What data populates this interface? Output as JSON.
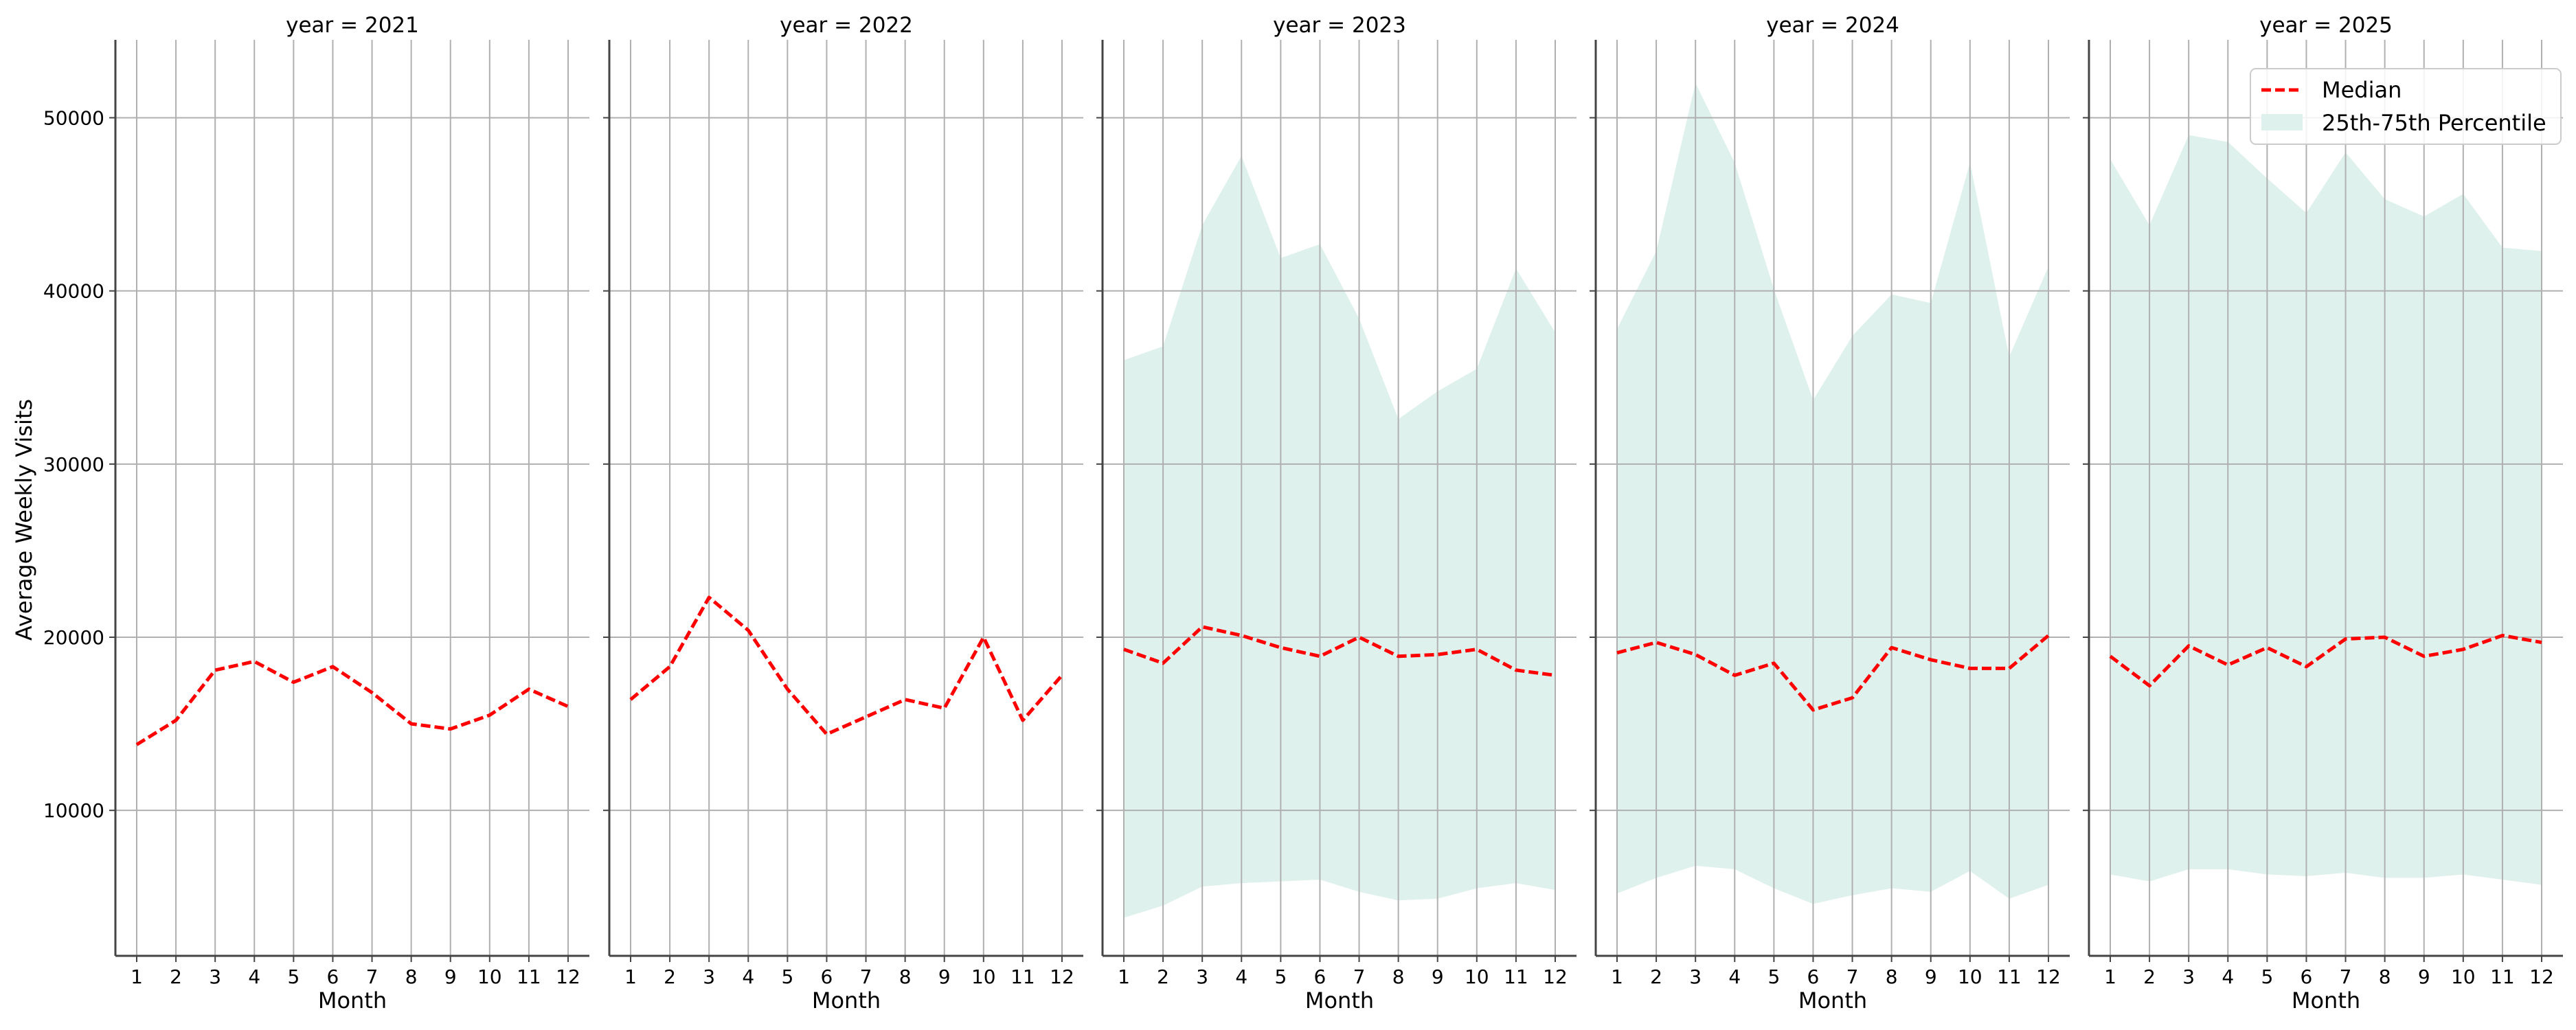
{
  "chart_data": {
    "type": "line",
    "ylabel": "Average Weekly Visits",
    "xlabel": "Month",
    "x": [
      1,
      2,
      3,
      4,
      5,
      6,
      7,
      8,
      9,
      10,
      11,
      12
    ],
    "ylim": [
      1600,
      54500
    ],
    "yticks": [
      10000,
      20000,
      30000,
      40000,
      50000
    ],
    "grid": true,
    "legend": {
      "location": "top-right",
      "entries": [
        "Median",
        "25th-75th Percentile"
      ]
    },
    "colors": {
      "median": "#ff0000",
      "band": "#dff1ec",
      "grid": "#b0b0b0",
      "axis": "#444444"
    },
    "panels": [
      {
        "title": "year = 2021",
        "median": [
          13800,
          15200,
          18100,
          18600,
          17400,
          18300,
          16800,
          15000,
          14700,
          15500,
          17000,
          16000
        ]
      },
      {
        "title": "year = 2022",
        "median": [
          16400,
          18300,
          22300,
          20400,
          17000,
          14400,
          15400,
          16400,
          15900,
          20000,
          15200,
          17800
        ]
      },
      {
        "title": "year = 2023",
        "median": [
          19300,
          18500,
          20600,
          20100,
          19400,
          18900,
          20000,
          18900,
          19000,
          19300,
          18100,
          17800
        ],
        "p25": [
          3800,
          4500,
          5600,
          5800,
          5900,
          6000,
          5300,
          4800,
          4900,
          5500,
          5800,
          5400
        ],
        "p75": [
          36000,
          36800,
          43800,
          47800,
          41900,
          42700,
          38400,
          32600,
          34200,
          35500,
          41300,
          37600
        ]
      },
      {
        "title": "year = 2024",
        "median": [
          19100,
          19700,
          19000,
          17800,
          18500,
          15800,
          16500,
          19400,
          18700,
          18200,
          18200,
          20100
        ],
        "p25": [
          5200,
          6100,
          6800,
          6600,
          5500,
          4600,
          5100,
          5500,
          5300,
          6500,
          4900,
          5700
        ],
        "p75": [
          37800,
          42300,
          52000,
          47400,
          40100,
          33700,
          37400,
          39800,
          39300,
          47400,
          36200,
          41400
        ]
      },
      {
        "title": "year = 2025",
        "median": [
          18900,
          17200,
          19500,
          18400,
          19400,
          18300,
          19900,
          20000,
          18900,
          19300,
          20100,
          19700
        ],
        "p25": [
          6300,
          5900,
          6600,
          6600,
          6300,
          6200,
          6400,
          6100,
          6100,
          6300,
          6000,
          5700
        ],
        "p75": [
          47600,
          43800,
          49000,
          48600,
          46500,
          44500,
          48000,
          45300,
          44300,
          45600,
          42500,
          42300
        ]
      }
    ]
  }
}
